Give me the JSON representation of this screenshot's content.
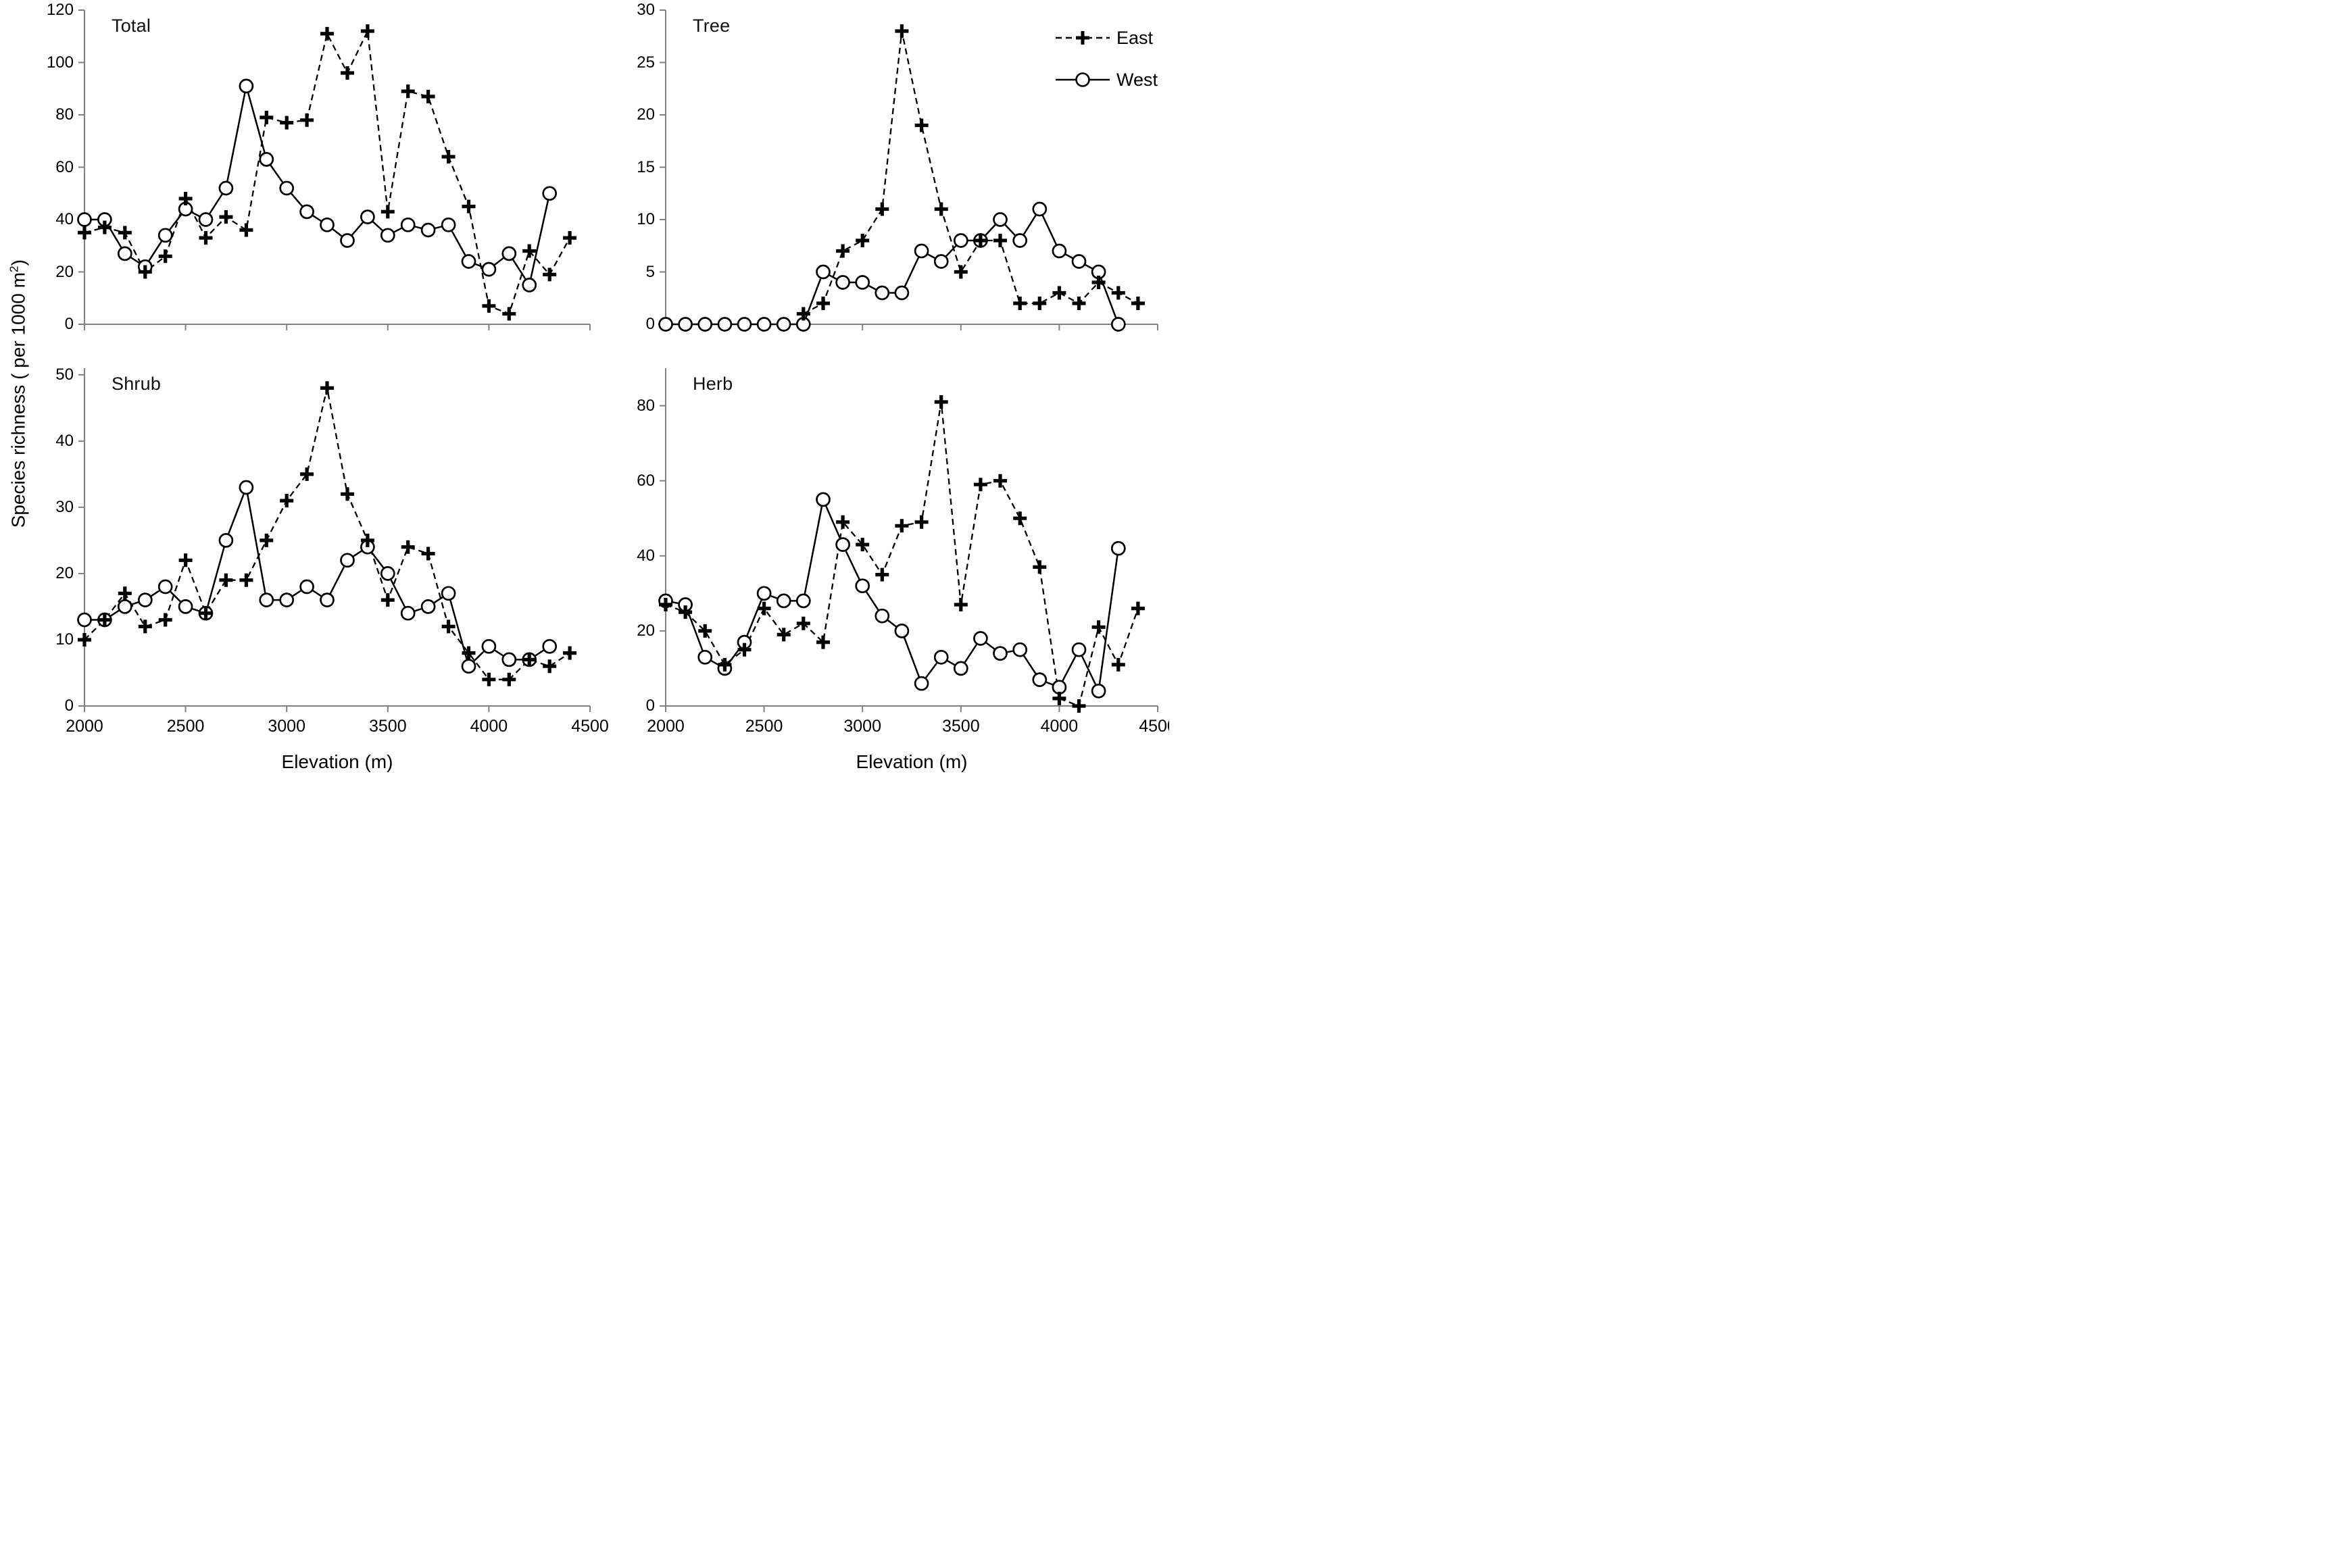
{
  "figure": {
    "x_axis_title": "Elevation (m)",
    "y_axis_title_pre": "Species richness ( per 1000 m",
    "y_axis_title_sup": "2",
    "y_axis_title_post": ")",
    "background_color": "#ffffff",
    "axis_color": "#808080",
    "series_color": "#000000"
  },
  "legend": {
    "east_label": "East",
    "west_label": "West"
  },
  "chart_data": [
    {
      "type": "line",
      "title": "Total",
      "xlabel": "Elevation (m)",
      "ylabel": "Species richness ( per 1000 m2)",
      "xlim": [
        2000,
        4500
      ],
      "ylim": [
        0,
        120
      ],
      "xticks": [
        2000,
        2500,
        3000,
        3500,
        4000,
        4500
      ],
      "yticks": [
        0,
        20,
        40,
        60,
        80,
        100,
        120
      ],
      "x_tick_labels_visible": false,
      "grid": false,
      "x": [
        2000,
        2100,
        2200,
        2300,
        2400,
        2500,
        2600,
        2700,
        2800,
        2900,
        3000,
        3100,
        3200,
        3300,
        3400,
        3500,
        3600,
        3700,
        3800,
        3900,
        4000,
        4100,
        4200,
        4300,
        4400
      ],
      "series": [
        {
          "name": "East",
          "line": "dashed",
          "marker": "plus",
          "values": [
            35,
            37,
            35,
            20,
            26,
            48,
            33,
            41,
            36,
            79,
            77,
            78,
            111,
            96,
            112,
            43,
            89,
            87,
            64,
            45,
            7,
            4,
            28,
            19,
            33
          ]
        },
        {
          "name": "West",
          "line": "solid",
          "marker": "circle",
          "values": [
            40,
            40,
            27,
            22,
            34,
            44,
            40,
            52,
            91,
            63,
            52,
            43,
            38,
            32,
            41,
            34,
            38,
            36,
            38,
            24,
            21,
            27,
            15,
            50,
            null
          ]
        }
      ]
    },
    {
      "type": "line",
      "title": "Tree",
      "xlabel": "Elevation (m)",
      "ylabel": "Species richness ( per 1000 m2)",
      "xlim": [
        2000,
        4500
      ],
      "ylim": [
        0,
        30
      ],
      "xticks": [
        2000,
        2500,
        3000,
        3500,
        4000,
        4500
      ],
      "yticks": [
        0,
        5,
        10,
        15,
        20,
        25,
        30
      ],
      "x_tick_labels_visible": false,
      "grid": false,
      "legend_visible": true,
      "x": [
        2000,
        2100,
        2200,
        2300,
        2400,
        2500,
        2600,
        2700,
        2800,
        2900,
        3000,
        3100,
        3200,
        3300,
        3400,
        3500,
        3600,
        3700,
        3800,
        3900,
        4000,
        4100,
        4200,
        4300,
        4400
      ],
      "series": [
        {
          "name": "East",
          "line": "dashed",
          "marker": "plus",
          "values": [
            null,
            null,
            null,
            null,
            null,
            null,
            null,
            1,
            2,
            7,
            8,
            11,
            28,
            19,
            11,
            5,
            8,
            8,
            2,
            2,
            3,
            2,
            4,
            3,
            2
          ]
        },
        {
          "name": "West",
          "line": "solid",
          "marker": "circle",
          "values": [
            0,
            0,
            0,
            0,
            0,
            0,
            0,
            0,
            5,
            4,
            4,
            3,
            3,
            7,
            6,
            8,
            8,
            10,
            8,
            11,
            7,
            6,
            5,
            0,
            null
          ]
        }
      ]
    },
    {
      "type": "line",
      "title": "Shrub",
      "xlabel": "Elevation (m)",
      "ylabel": "Species richness ( per 1000 m2)",
      "xlim": [
        2000,
        4500
      ],
      "ylim": [
        0,
        51
      ],
      "xticks": [
        2000,
        2500,
        3000,
        3500,
        4000,
        4500
      ],
      "yticks": [
        0,
        10,
        20,
        30,
        40,
        50
      ],
      "x_tick_labels_visible": true,
      "grid": false,
      "x": [
        2000,
        2100,
        2200,
        2300,
        2400,
        2500,
        2600,
        2700,
        2800,
        2900,
        3000,
        3100,
        3200,
        3300,
        3400,
        3500,
        3600,
        3700,
        3800,
        3900,
        4000,
        4100,
        4200,
        4300,
        4400
      ],
      "series": [
        {
          "name": "East",
          "line": "dashed",
          "marker": "plus",
          "values": [
            10,
            13,
            17,
            12,
            13,
            22,
            14,
            19,
            19,
            25,
            31,
            35,
            48,
            32,
            25,
            16,
            24,
            23,
            12,
            8,
            4,
            4,
            7,
            6,
            8
          ]
        },
        {
          "name": "West",
          "line": "solid",
          "marker": "circle",
          "values": [
            13,
            13,
            15,
            16,
            18,
            15,
            14,
            25,
            33,
            16,
            16,
            18,
            16,
            22,
            24,
            20,
            14,
            15,
            17,
            6,
            9,
            7,
            7,
            9,
            null
          ]
        }
      ]
    },
    {
      "type": "line",
      "title": "Herb",
      "xlabel": "Elevation (m)",
      "ylabel": "Species richness ( per 1000 m2)",
      "xlim": [
        2000,
        4500
      ],
      "ylim": [
        0,
        90
      ],
      "xticks": [
        2000,
        2500,
        3000,
        3500,
        4000,
        4500
      ],
      "yticks": [
        0,
        20,
        40,
        60,
        80
      ],
      "x_tick_labels_visible": true,
      "grid": false,
      "x": [
        2000,
        2100,
        2200,
        2300,
        2400,
        2500,
        2600,
        2700,
        2800,
        2900,
        3000,
        3100,
        3200,
        3300,
        3400,
        3500,
        3600,
        3700,
        3800,
        3900,
        4000,
        4100,
        4200,
        4300,
        4400
      ],
      "series": [
        {
          "name": "East",
          "line": "dashed",
          "marker": "plus",
          "values": [
            27,
            25,
            20,
            11,
            15,
            26,
            19,
            22,
            17,
            49,
            43,
            35,
            48,
            49,
            81,
            27,
            59,
            60,
            50,
            37,
            2,
            0,
            21,
            11,
            26
          ]
        },
        {
          "name": "West",
          "line": "solid",
          "marker": "circle",
          "values": [
            28,
            27,
            13,
            10,
            17,
            30,
            28,
            28,
            55,
            43,
            32,
            24,
            20,
            6,
            13,
            10,
            18,
            14,
            15,
            7,
            5,
            15,
            4,
            42,
            null
          ]
        }
      ]
    }
  ]
}
